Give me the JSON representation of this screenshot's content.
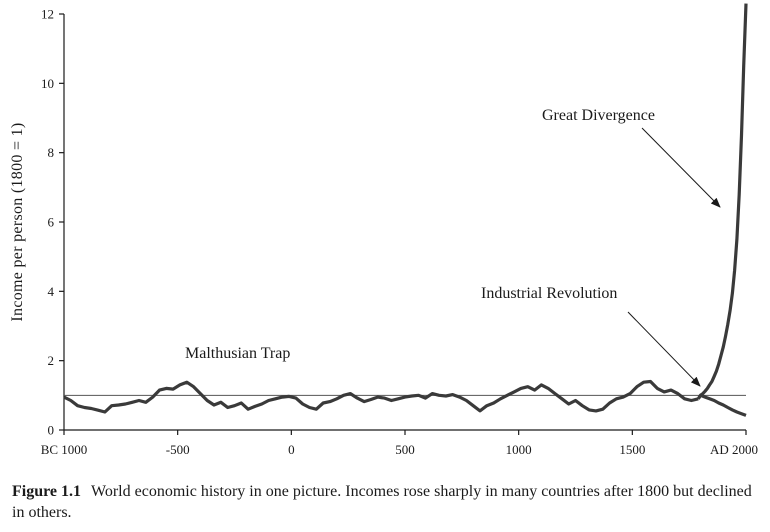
{
  "chart_data": {
    "type": "line",
    "ylabel": "Income per person (1800 = 1)",
    "ylim": [
      0,
      12
    ],
    "xlim": [
      -1000,
      2000
    ],
    "y_ticks": [
      0,
      2,
      4,
      6,
      8,
      10,
      12
    ],
    "x_ticks": [
      {
        "value": -1000,
        "label": "BC 1000"
      },
      {
        "value": -500,
        "label": "-500"
      },
      {
        "value": 0,
        "label": "0"
      },
      {
        "value": 500,
        "label": "500"
      },
      {
        "value": 1000,
        "label": "1000"
      },
      {
        "value": 1500,
        "label": "1500"
      },
      {
        "value": 2000,
        "label": "AD 2000"
      }
    ],
    "reference_line": 1.0,
    "series": [
      {
        "role": "malthusian",
        "x": [
          -1000,
          -970,
          -940,
          -910,
          -880,
          -850,
          -820,
          -790,
          -760,
          -730,
          -700,
          -670,
          -640,
          -610,
          -580,
          -550,
          -520,
          -490,
          -460,
          -430,
          -400,
          -370,
          -340,
          -310,
          -280,
          -250,
          -220,
          -190,
          -160,
          -130,
          -100,
          -70,
          -40,
          -10,
          20,
          50,
          80,
          110,
          140,
          170,
          200,
          230,
          260,
          290,
          320,
          350,
          380,
          410,
          440,
          470,
          500,
          530,
          560,
          590,
          620,
          650,
          680,
          710,
          740,
          770,
          800,
          830,
          860,
          890,
          920,
          950,
          980,
          1010,
          1040,
          1070,
          1100,
          1130,
          1160,
          1190,
          1220,
          1250,
          1280,
          1310,
          1340,
          1370,
          1400,
          1430,
          1460,
          1490,
          1520,
          1550,
          1580,
          1610,
          1640,
          1670,
          1700,
          1730,
          1760,
          1790
        ],
        "y": [
          0.95,
          0.85,
          0.7,
          0.65,
          0.62,
          0.57,
          0.52,
          0.7,
          0.72,
          0.75,
          0.8,
          0.85,
          0.8,
          0.95,
          1.15,
          1.2,
          1.18,
          1.3,
          1.38,
          1.25,
          1.05,
          0.85,
          0.72,
          0.8,
          0.65,
          0.7,
          0.78,
          0.6,
          0.68,
          0.75,
          0.85,
          0.9,
          0.95,
          0.97,
          0.92,
          0.75,
          0.65,
          0.6,
          0.78,
          0.82,
          0.9,
          1.0,
          1.05,
          0.92,
          0.82,
          0.88,
          0.95,
          0.92,
          0.85,
          0.9,
          0.95,
          0.98,
          1.0,
          0.92,
          1.05,
          1.0,
          0.98,
          1.02,
          0.95,
          0.85,
          0.7,
          0.55,
          0.7,
          0.78,
          0.9,
          1.0,
          1.1,
          1.2,
          1.25,
          1.15,
          1.3,
          1.2,
          1.05,
          0.9,
          0.75,
          0.85,
          0.7,
          0.58,
          0.55,
          0.6,
          0.78,
          0.9,
          0.95,
          1.05,
          1.25,
          1.38,
          1.4,
          1.2,
          1.1,
          1.15,
          1.05,
          0.9,
          0.85,
          0.9
        ]
      },
      {
        "role": "great-divergence",
        "x": [
          1790,
          1800,
          1810,
          1820,
          1830,
          1840,
          1850,
          1860,
          1870,
          1880,
          1890,
          1900,
          1910,
          1920,
          1930,
          1940,
          1950,
          1960,
          1970,
          1980,
          1990,
          2000
        ],
        "y": [
          0.9,
          1.0,
          1.05,
          1.12,
          1.2,
          1.3,
          1.4,
          1.55,
          1.7,
          1.9,
          2.15,
          2.4,
          2.7,
          3.05,
          3.45,
          3.95,
          4.6,
          5.5,
          6.8,
          8.5,
          10.5,
          12.5
        ]
      },
      {
        "role": "decline",
        "x": [
          1790,
          1800,
          1820,
          1840,
          1860,
          1880,
          1900,
          1920,
          1940,
          1960,
          1980,
          2000
        ],
        "y": [
          0.9,
          1.0,
          0.95,
          0.9,
          0.85,
          0.78,
          0.72,
          0.65,
          0.58,
          0.52,
          0.47,
          0.42
        ]
      }
    ],
    "annotations": [
      {
        "text": "Malthusian Trap"
      },
      {
        "text": "Industrial Revolution"
      },
      {
        "text": "Great Divergence"
      }
    ]
  },
  "caption": {
    "label": "Figure 1.1",
    "text": "World economic history in one picture. Incomes rose sharply in many countries after 1800 but declined in others."
  }
}
